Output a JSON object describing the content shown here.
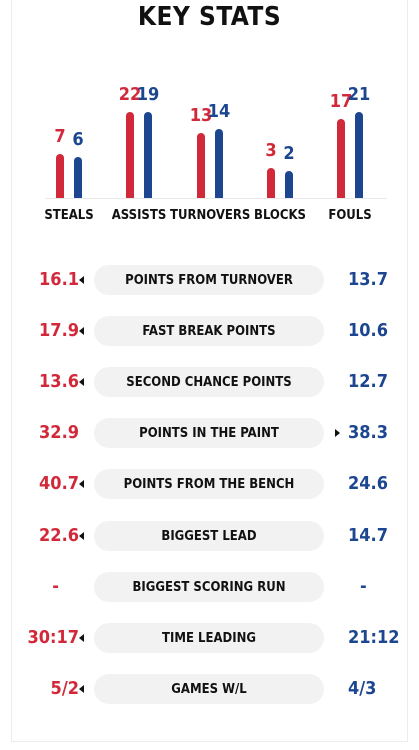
{
  "title": "KEY STATS",
  "colors": {
    "home": "#d2293a",
    "away": "#1d4690"
  },
  "chart_data": {
    "type": "bar",
    "categories": [
      "STEALS",
      "ASSISTS",
      "TURNOVERS",
      "BLOCKS",
      "FOULS"
    ],
    "series": [
      {
        "values": [
          7,
          22,
          13,
          3,
          17
        ]
      },
      {
        "values": [
          6,
          19,
          14,
          2,
          21
        ]
      }
    ]
  },
  "rows": [
    {
      "label": "POINTS FROM TURNOVER",
      "left": "16.1",
      "right": "13.7",
      "leader": "left"
    },
    {
      "label": "FAST BREAK POINTS",
      "left": "17.9",
      "right": "10.6",
      "leader": "left"
    },
    {
      "label": "SECOND CHANCE POINTS",
      "left": "13.6",
      "right": "12.7",
      "leader": "left"
    },
    {
      "label": "POINTS IN THE PAINT",
      "left": "32.9",
      "right": "38.3",
      "leader": "right"
    },
    {
      "label": "POINTS FROM THE BENCH",
      "left": "40.7",
      "right": "24.6",
      "leader": "left"
    },
    {
      "label": "BIGGEST LEAD",
      "left": "22.6",
      "right": "14.7",
      "leader": "left"
    },
    {
      "label": "BIGGEST SCORING RUN",
      "left": "-",
      "right": "-",
      "leader": "none"
    },
    {
      "label": "TIME LEADING",
      "left": "30:17",
      "right": "21:12",
      "leader": "left"
    },
    {
      "label": "GAMES W/L",
      "left": "5/2",
      "right": "4/3",
      "leader": "left"
    }
  ]
}
